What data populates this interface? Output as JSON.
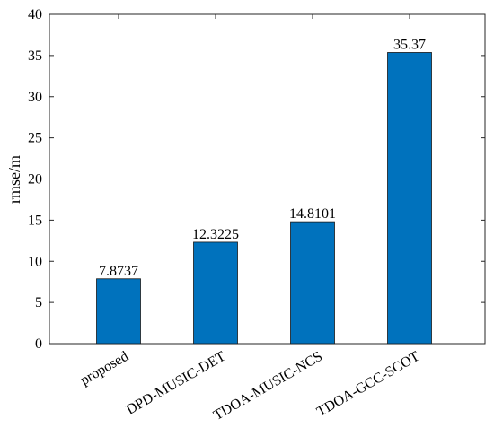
{
  "chart_data": {
    "type": "bar",
    "ylabel": "rmse/m",
    "categories": [
      "proposed",
      "DPD-MUSIC-DET",
      "TDOA-MUSIC-NCS",
      "TDOA-GCC-SCOT"
    ],
    "values": [
      7.8737,
      12.3225,
      14.8101,
      35.37
    ],
    "color": "#0072bd",
    "ylim": [
      0,
      40
    ],
    "yticks": [
      0,
      5,
      10,
      15,
      20,
      25,
      30,
      35,
      40
    ]
  }
}
